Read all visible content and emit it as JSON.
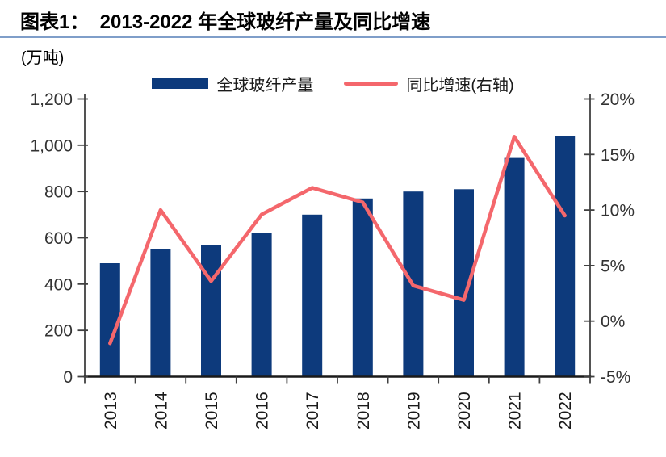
{
  "header": {
    "title": "图表1：  2013-2022 年全球玻纤产量及同比增速"
  },
  "unit_label": "(万吨)",
  "legend": [
    {
      "label": "全球玻纤产量",
      "type": "bar",
      "color": "#0d3a7c"
    },
    {
      "label": "同比增速(右轴)",
      "type": "line",
      "color": "#f4676c"
    }
  ],
  "colors": {
    "bar": "#0d3a7c",
    "line": "#f4676c",
    "underline": "#7f9ec9",
    "axis": "#404040",
    "x_axis": "#1a1a1a",
    "axis_text": "#333333",
    "year_text": "#1a1a1a"
  },
  "chart_data": {
    "type": "bar",
    "subtype": "combo-bar-line",
    "title": "2013-2022 年全球玻纤产量及同比增速",
    "categories": [
      "2013",
      "2014",
      "2015",
      "2016",
      "2017",
      "2018",
      "2019",
      "2020",
      "2021",
      "2022"
    ],
    "series": [
      {
        "name": "全球玻纤产量",
        "type": "bar",
        "axis": "left",
        "unit": "万吨",
        "color": "#0d3a7c",
        "values": [
          490,
          550,
          570,
          620,
          700,
          770,
          800,
          810,
          945,
          1040
        ]
      },
      {
        "name": "同比增速(右轴)",
        "type": "line",
        "axis": "right",
        "unit": "%",
        "color": "#f4676c",
        "values": [
          -2.0,
          10.0,
          3.6,
          9.6,
          12.0,
          10.7,
          3.2,
          1.9,
          16.6,
          9.5
        ]
      }
    ],
    "left_axis": {
      "unit": "(万吨)",
      "min": 0,
      "max": 1200,
      "step": 200,
      "tick_labels": [
        "1,200",
        "1,000",
        "800",
        "600",
        "400",
        "200",
        "0"
      ]
    },
    "right_axis": {
      "unit": "%",
      "min": -5,
      "max": 20,
      "step": 5,
      "tick_labels": [
        "20%",
        "15%",
        "10%",
        "5%",
        "0%",
        "-5%"
      ]
    },
    "grid": false,
    "legend_position": "top"
  }
}
